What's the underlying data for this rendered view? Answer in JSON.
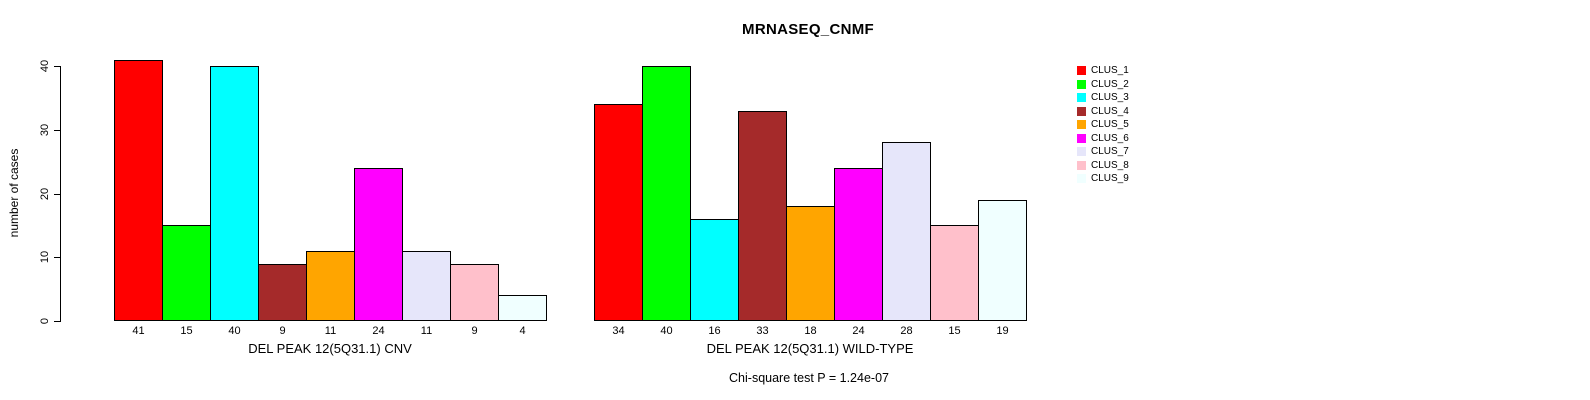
{
  "chart_data": {
    "type": "bar",
    "title": "MRNASEQ_CNMF",
    "ylabel": "number of cases",
    "ylim": [
      0,
      40
    ],
    "yticks": [
      0,
      10,
      20,
      30,
      40
    ],
    "grid": false,
    "legend_position": "right",
    "bar_value_labels_shown": true,
    "group_labels": [
      "DEL PEAK 12(5Q31.1) CNV",
      "DEL PEAK 12(5Q31.1) WILD-TYPE"
    ],
    "series": [
      {
        "name": "CLUS_1",
        "color": "#FF0000",
        "values": [
          41,
          34
        ]
      },
      {
        "name": "CLUS_2",
        "color": "#00FF00",
        "values": [
          15,
          40
        ]
      },
      {
        "name": "CLUS_3",
        "color": "#00FFFF",
        "values": [
          40,
          16
        ]
      },
      {
        "name": "CLUS_4",
        "color": "#A52A2A",
        "values": [
          9,
          33
        ]
      },
      {
        "name": "CLUS_5",
        "color": "#FFA500",
        "values": [
          11,
          18
        ]
      },
      {
        "name": "CLUS_6",
        "color": "#FF00FF",
        "values": [
          24,
          24
        ]
      },
      {
        "name": "CLUS_7",
        "color": "#E6E6FA",
        "values": [
          11,
          28
        ]
      },
      {
        "name": "CLUS_8",
        "color": "#FFC0CB",
        "values": [
          9,
          15
        ]
      },
      {
        "name": "CLUS_9",
        "color": "#F0FFFF",
        "values": [
          4,
          19
        ]
      }
    ],
    "footnote": "Chi-square test P = 1.24e-07",
    "axis_color": "#000000",
    "bar_border_color": "#000000"
  }
}
